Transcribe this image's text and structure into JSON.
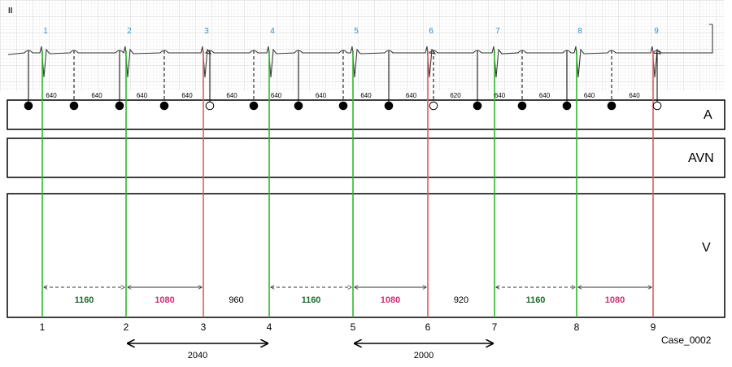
{
  "lead_label": "II",
  "case_label": "Case_0002",
  "rows": {
    "a": "A",
    "avn": "AVN",
    "v": "V"
  },
  "colors": {
    "green": "#2eb82e",
    "red": "#e05a5a",
    "dark_green": "#1f6b2e",
    "magenta": "#cc3377",
    "beat_label": "#2a8fc5",
    "grid": "#d8d8d8"
  },
  "beats": [
    {
      "label": "1",
      "type": "green"
    },
    {
      "label": "2",
      "type": "green"
    },
    {
      "label": "3",
      "type": "red"
    },
    {
      "label": "4",
      "type": "green"
    },
    {
      "label": "5",
      "type": "green"
    },
    {
      "label": "6",
      "type": "red"
    },
    {
      "label": "7",
      "type": "green"
    },
    {
      "label": "8",
      "type": "green"
    },
    {
      "label": "9",
      "type": "red"
    }
  ],
  "atrial_intervals": [
    "640",
    "640",
    "640",
    "640",
    "640",
    "640",
    "640",
    "640",
    "640",
    "620",
    "640",
    "640",
    "640",
    "640"
  ],
  "atrial_events": [
    {
      "type": "solid"
    },
    {
      "type": "solid"
    },
    {
      "type": "solid"
    },
    {
      "type": "solid"
    },
    {
      "type": "open"
    },
    {
      "type": "solid"
    },
    {
      "type": "solid"
    },
    {
      "type": "solid"
    },
    {
      "type": "solid"
    },
    {
      "type": "open"
    },
    {
      "type": "solid"
    },
    {
      "type": "solid"
    },
    {
      "type": "solid"
    },
    {
      "type": "solid"
    },
    {
      "type": "open"
    }
  ],
  "v_intervals": [
    {
      "value": "1160",
      "style": "dark_green",
      "arrow": true
    },
    {
      "value": "1080",
      "style": "magenta",
      "arrow": true
    },
    {
      "value": "960",
      "style": "plain",
      "arrow": false
    },
    {
      "value": "1160",
      "style": "dark_green",
      "arrow": true
    },
    {
      "value": "1080",
      "style": "magenta",
      "arrow": true
    },
    {
      "value": "920",
      "style": "plain",
      "arrow": false
    },
    {
      "value": "1160",
      "style": "dark_green",
      "arrow": true
    },
    {
      "value": "1080",
      "style": "magenta",
      "arrow": true
    }
  ],
  "cycles": [
    {
      "value": "2040",
      "from": "2",
      "to": "4"
    },
    {
      "value": "2000",
      "from": "5",
      "to": "7"
    }
  ]
}
